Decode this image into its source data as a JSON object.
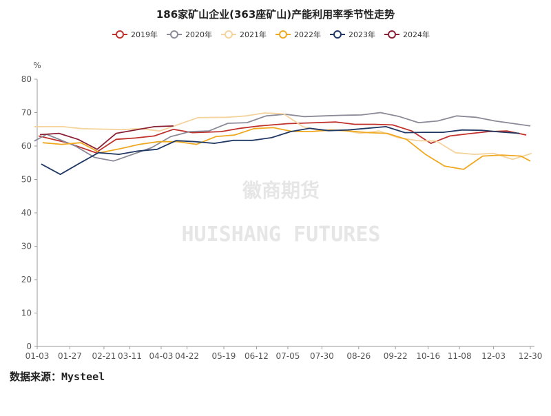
{
  "chart_data": {
    "type": "line",
    "title": "186家矿山企业(363座矿山)产能利用率季节性走势",
    "ylabel": "%",
    "ylim": [
      0,
      80
    ],
    "yticks": [
      0,
      10,
      20,
      30,
      40,
      50,
      60,
      70,
      80
    ],
    "xticks": [
      "01-03",
      "01-27",
      "02-21",
      "03-11",
      "04-03",
      "04-22",
      "05-19",
      "06-12",
      "07-05",
      "07-30",
      "08-26",
      "09-22",
      "10-16",
      "11-08",
      "12-03",
      "12-30"
    ],
    "grid": false,
    "legend_position": "top",
    "watermark_cn": "徽商期货",
    "watermark_en": "HUISHANG FUTURES",
    "source": "数据来源：Mysteel",
    "series": [
      {
        "name": "2019年",
        "color": "#c0312b",
        "points": [
          [
            "01-04",
            63.0
          ],
          [
            "01-25",
            61.0
          ],
          [
            "02-15",
            58.0
          ],
          [
            "03-01",
            62.0
          ],
          [
            "03-15",
            62.4
          ],
          [
            "03-29",
            63.0
          ],
          [
            "04-12",
            65.0
          ],
          [
            "04-26",
            64.0
          ],
          [
            "05-17",
            64.3
          ],
          [
            "05-31",
            65.3
          ],
          [
            "06-14",
            66.0
          ],
          [
            "07-05",
            66.7
          ],
          [
            "07-26",
            67.0
          ],
          [
            "08-09",
            67.2
          ],
          [
            "08-23",
            66.5
          ],
          [
            "09-06",
            66.5
          ],
          [
            "09-20",
            66.3
          ],
          [
            "10-04",
            64.5
          ],
          [
            "10-18",
            60.8
          ],
          [
            "11-01",
            63.0
          ],
          [
            "11-15",
            63.7
          ],
          [
            "11-29",
            64.3
          ],
          [
            "12-13",
            64.5
          ],
          [
            "12-27",
            63.3
          ]
        ]
      },
      {
        "name": "2020年",
        "color": "#8a8a98",
        "points": [
          [
            "01-01",
            61.5
          ],
          [
            "01-10",
            63.5
          ],
          [
            "01-31",
            60.0
          ],
          [
            "02-14",
            56.6
          ],
          [
            "02-28",
            55.5
          ],
          [
            "03-13",
            57.5
          ],
          [
            "03-27",
            59.5
          ],
          [
            "04-10",
            62.8
          ],
          [
            "04-24",
            64.3
          ],
          [
            "05-08",
            64.5
          ],
          [
            "05-22",
            66.8
          ],
          [
            "06-05",
            67.0
          ],
          [
            "06-19",
            69.0
          ],
          [
            "07-03",
            69.5
          ],
          [
            "07-17",
            68.8
          ],
          [
            "07-31",
            69.0
          ],
          [
            "08-14",
            69.2
          ],
          [
            "08-28",
            69.3
          ],
          [
            "09-11",
            70.0
          ],
          [
            "09-25",
            68.8
          ],
          [
            "10-09",
            67.0
          ],
          [
            "10-23",
            67.5
          ],
          [
            "11-06",
            69.0
          ],
          [
            "11-20",
            68.6
          ],
          [
            "12-04",
            67.5
          ],
          [
            "12-18",
            66.7
          ],
          [
            "12-30",
            66.0
          ]
        ]
      },
      {
        "name": "2021年",
        "color": "#f5d39d",
        "points": [
          [
            "01-01",
            65.8
          ],
          [
            "01-22",
            65.8
          ],
          [
            "02-05",
            65.2
          ],
          [
            "03-05",
            64.9
          ],
          [
            "03-19",
            65.2
          ],
          [
            "04-02",
            64.5
          ],
          [
            "04-16",
            66.5
          ],
          [
            "04-30",
            68.5
          ],
          [
            "05-21",
            68.6
          ],
          [
            "06-04",
            69.0
          ],
          [
            "06-18",
            69.9
          ],
          [
            "07-02",
            69.6
          ],
          [
            "07-16",
            65.8
          ],
          [
            "07-30",
            64.5
          ],
          [
            "08-13",
            64.8
          ],
          [
            "08-27",
            63.8
          ],
          [
            "09-10",
            64.5
          ],
          [
            "09-24",
            62.5
          ],
          [
            "10-08",
            61.6
          ],
          [
            "10-22",
            61.5
          ],
          [
            "11-05",
            58.0
          ],
          [
            "11-19",
            57.5
          ],
          [
            "12-03",
            57.8
          ],
          [
            "12-17",
            56.0
          ],
          [
            "12-31",
            57.8
          ]
        ]
      },
      {
        "name": "2022年",
        "color": "#f0a81e",
        "points": [
          [
            "01-07",
            61.0
          ],
          [
            "01-21",
            60.5
          ],
          [
            "02-04",
            61.0
          ],
          [
            "02-18",
            58.0
          ],
          [
            "03-04",
            59.2
          ],
          [
            "03-18",
            60.5
          ],
          [
            "04-01",
            61.3
          ],
          [
            "04-15",
            61.3
          ],
          [
            "04-29",
            60.5
          ],
          [
            "05-13",
            62.8
          ],
          [
            "05-27",
            63.3
          ],
          [
            "06-10",
            65.2
          ],
          [
            "06-24",
            65.5
          ],
          [
            "07-08",
            64.4
          ],
          [
            "07-22",
            64.3
          ],
          [
            "08-05",
            64.8
          ],
          [
            "08-19",
            64.5
          ],
          [
            "09-02",
            64.0
          ],
          [
            "09-16",
            63.8
          ],
          [
            "09-30",
            62.0
          ],
          [
            "10-14",
            57.5
          ],
          [
            "10-28",
            54.0
          ],
          [
            "11-11",
            53.0
          ],
          [
            "11-25",
            57.0
          ],
          [
            "12-09",
            57.3
          ],
          [
            "12-23",
            57.0
          ],
          [
            "12-30",
            55.5
          ]
        ]
      },
      {
        "name": "2023年",
        "color": "#1f3864",
        "points": [
          [
            "01-06",
            54.6
          ],
          [
            "01-20",
            51.5
          ],
          [
            "02-03",
            54.8
          ],
          [
            "02-17",
            58.0
          ],
          [
            "03-03",
            57.5
          ],
          [
            "03-17",
            58.5
          ],
          [
            "03-31",
            59.0
          ],
          [
            "04-14",
            61.6
          ],
          [
            "04-28",
            61.3
          ],
          [
            "05-12",
            60.8
          ],
          [
            "05-26",
            61.7
          ],
          [
            "06-09",
            61.7
          ],
          [
            "06-23",
            62.5
          ],
          [
            "07-07",
            64.3
          ],
          [
            "07-21",
            65.3
          ],
          [
            "08-04",
            64.6
          ],
          [
            "08-18",
            64.8
          ],
          [
            "09-01",
            65.3
          ],
          [
            "09-15",
            65.8
          ],
          [
            "09-29",
            64.0
          ],
          [
            "10-13",
            64.1
          ],
          [
            "10-27",
            64.1
          ],
          [
            "11-10",
            64.8
          ],
          [
            "11-24",
            64.7
          ],
          [
            "12-08",
            64.2
          ],
          [
            "12-22",
            63.8
          ]
        ]
      },
      {
        "name": "2024年",
        "color": "#8b2035",
        "points": [
          [
            "01-05",
            63.4
          ],
          [
            "01-19",
            63.8
          ],
          [
            "02-02",
            62.0
          ],
          [
            "02-16",
            59.0
          ],
          [
            "03-01",
            63.8
          ],
          [
            "03-15",
            64.8
          ],
          [
            "03-29",
            65.8
          ],
          [
            "04-12",
            66.0
          ]
        ]
      }
    ]
  }
}
